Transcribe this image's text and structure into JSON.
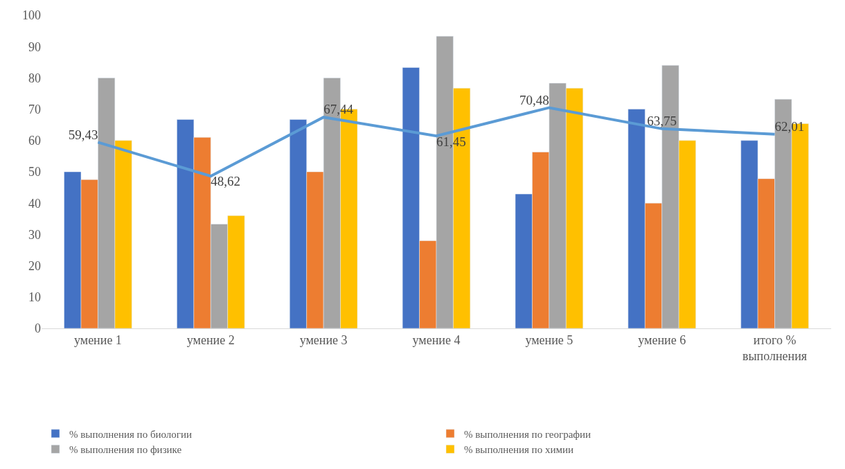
{
  "chart_data": {
    "type": "bar",
    "categories": [
      "умение 1",
      "умение 2",
      "умение 3",
      "умение 4",
      "умение 5",
      "умение 6",
      "итого % выполнения"
    ],
    "series": [
      {
        "name": "% выполнения по биологии",
        "color": "#4472c4",
        "values": [
          50,
          66.7,
          66.7,
          83.3,
          42.9,
          70,
          60
        ]
      },
      {
        "name": "% выполнения по географии",
        "color": "#ed7d31",
        "values": [
          47.5,
          61,
          50,
          28,
          56.3,
          40,
          47.8
        ]
      },
      {
        "name": "% выполнения по физике",
        "color": "#a5a5a5",
        "values": [
          80,
          33.3,
          80,
          93.3,
          78.3,
          84,
          73.2
        ]
      },
      {
        "name": "% выполнения по химии",
        "color": "#ffc000",
        "values": [
          60,
          36,
          70,
          76.7,
          76.7,
          60,
          65.4
        ]
      },
      {
        "type": "line",
        "color": "#5b9bd5",
        "values": [
          59.43,
          48.62,
          67.44,
          61.45,
          70.48,
          63.75,
          62.01
        ],
        "value_labels": [
          "59,43",
          "48,62",
          "67,44",
          "61,45",
          "70,48",
          "63,75",
          "62,01"
        ]
      }
    ],
    "ylim": [
      0,
      100
    ],
    "yticks": [
      0,
      10,
      20,
      30,
      40,
      50,
      60,
      70,
      80,
      90,
      100
    ],
    "grid": false,
    "legend": "bottom",
    "marker": "none"
  }
}
